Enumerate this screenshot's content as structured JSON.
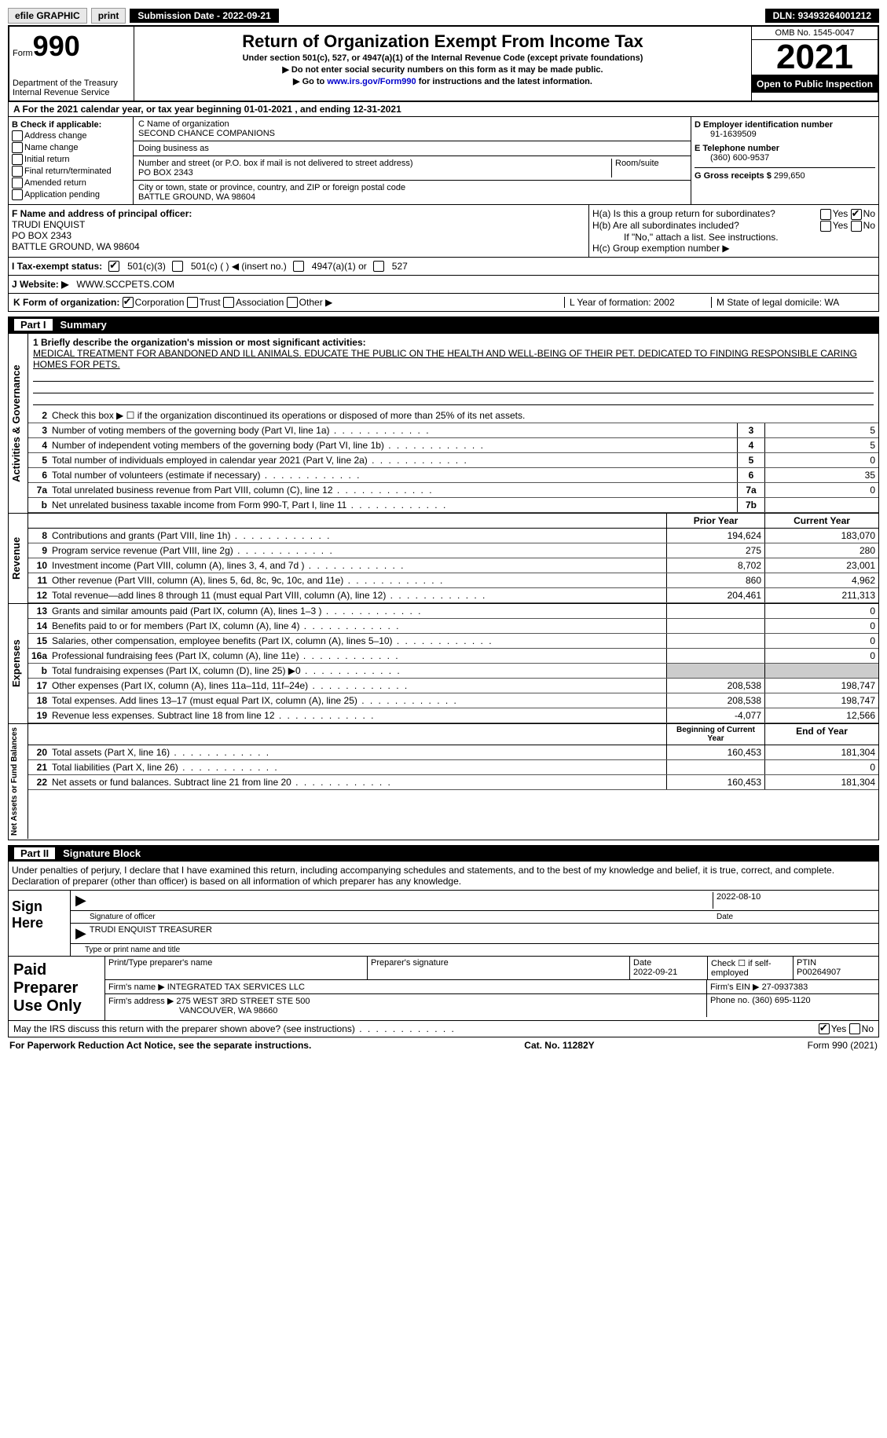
{
  "topbar": {
    "efile": "efile GRAPHIC",
    "print": "print",
    "subdate_label": "Submission Date - ",
    "subdate": "2022-09-21",
    "dln_label": "DLN: ",
    "dln": "93493264001212"
  },
  "header": {
    "form": "Form",
    "form_no": "990",
    "dept": "Department of the Treasury\nInternal Revenue Service",
    "title": "Return of Organization Exempt From Income Tax",
    "sub1": "Under section 501(c), 527, or 4947(a)(1) of the Internal Revenue Code (except private foundations)",
    "sub2": "▶ Do not enter social security numbers on this form as it may be made public.",
    "sub3a": "▶ Go to ",
    "sub3link": "www.irs.gov/Form990",
    "sub3b": " for instructions and the latest information.",
    "omb": "OMB No. 1545-0047",
    "year": "2021",
    "inspect": "Open to Public Inspection"
  },
  "rowA": "A For the 2021 calendar year, or tax year beginning 01-01-2021    , and ending 12-31-2021",
  "B": {
    "label": "B Check if applicable:",
    "opts": [
      "Address change",
      "Name change",
      "Initial return",
      "Final return/terminated",
      "Amended return",
      "Application pending"
    ]
  },
  "C": {
    "name_label": "C Name of organization",
    "name": "SECOND CHANCE COMPANIONS",
    "dba": "Doing business as",
    "addr_label": "Number and street (or P.O. box if mail is not delivered to street address)",
    "room": "Room/suite",
    "addr": "PO BOX 2343",
    "city_label": "City or town, state or province, country, and ZIP or foreign postal code",
    "city": "BATTLE GROUND, WA  98604"
  },
  "D": {
    "ein_label": "D Employer identification number",
    "ein": "91-1639509",
    "tel_label": "E Telephone number",
    "tel": "(360) 600-9537",
    "gross_label": "G Gross receipts $ ",
    "gross": "299,650"
  },
  "F": {
    "label": "F  Name and address of principal officer:",
    "name": "TRUDI ENQUIST",
    "addr": "PO BOX 2343",
    "city": "BATTLE GROUND, WA  98604"
  },
  "H": {
    "a": "H(a)  Is this a group return for subordinates?",
    "b": "H(b)  Are all subordinates included?",
    "if_no": "If \"No,\" attach a list. See instructions.",
    "c": "H(c)  Group exemption number ▶",
    "yes": "Yes",
    "no": "No"
  },
  "I": {
    "label": "I    Tax-exempt status:",
    "o1": "501(c)(3)",
    "o2": "501(c) (  ) ◀ (insert no.)",
    "o3": "4947(a)(1) or",
    "o4": "527"
  },
  "J": {
    "label": "J   Website: ▶",
    "val": "WWW.SCCPETS.COM"
  },
  "K": {
    "label": "K Form of organization:",
    "o1": "Corporation",
    "o2": "Trust",
    "o3": "Association",
    "o4": "Other ▶",
    "L": "L Year of formation: 2002",
    "M": "M State of legal domicile: WA"
  },
  "part1": {
    "n": "Part I",
    "title": "Summary"
  },
  "part2": {
    "n": "Part II",
    "title": "Signature Block"
  },
  "sides": {
    "ag": "Activities & Governance",
    "rev": "Revenue",
    "exp": "Expenses",
    "net": "Net Assets or Fund Balances"
  },
  "mission": {
    "label": "1  Briefly describe the organization's mission or most significant activities:",
    "text": "MEDICAL TREATMENT FOR ABANDONED AND ILL ANIMALS. EDUCATE THE PUBLIC ON THE HEALTH AND WELL-BEING OF THEIR PET. DEDICATED TO FINDING RESPONSIBLE CARING HOMES FOR PETS."
  },
  "line2": "Check this box ▶ ☐ if the organization discontinued its operations or disposed of more than 25% of its net assets.",
  "ag_lines": [
    {
      "n": "3",
      "d": "Number of voting members of the governing body (Part VI, line 1a)",
      "b": "3",
      "v": "5"
    },
    {
      "n": "4",
      "d": "Number of independent voting members of the governing body (Part VI, line 1b)",
      "b": "4",
      "v": "5"
    },
    {
      "n": "5",
      "d": "Total number of individuals employed in calendar year 2021 (Part V, line 2a)",
      "b": "5",
      "v": "0"
    },
    {
      "n": "6",
      "d": "Total number of volunteers (estimate if necessary)",
      "b": "6",
      "v": "35"
    },
    {
      "n": "7a",
      "d": "Total unrelated business revenue from Part VIII, column (C), line 12",
      "b": "7a",
      "v": "0"
    },
    {
      "n": "b",
      "d": "Net unrelated business taxable income from Form 990-T, Part I, line 11",
      "b": "7b",
      "v": ""
    }
  ],
  "cols": {
    "prior": "Prior Year",
    "curr": "Current Year",
    "boy": "Beginning of Current Year",
    "eoy": "End of Year"
  },
  "rev": [
    {
      "n": "8",
      "d": "Contributions and grants (Part VIII, line 1h)",
      "p": "194,624",
      "c": "183,070"
    },
    {
      "n": "9",
      "d": "Program service revenue (Part VIII, line 2g)",
      "p": "275",
      "c": "280"
    },
    {
      "n": "10",
      "d": "Investment income (Part VIII, column (A), lines 3, 4, and 7d )",
      "p": "8,702",
      "c": "23,001"
    },
    {
      "n": "11",
      "d": "Other revenue (Part VIII, column (A), lines 5, 6d, 8c, 9c, 10c, and 11e)",
      "p": "860",
      "c": "4,962"
    },
    {
      "n": "12",
      "d": "Total revenue—add lines 8 through 11 (must equal Part VIII, column (A), line 12)",
      "p": "204,461",
      "c": "211,313"
    }
  ],
  "exp": [
    {
      "n": "13",
      "d": "Grants and similar amounts paid (Part IX, column (A), lines 1–3 )",
      "p": "",
      "c": "0"
    },
    {
      "n": "14",
      "d": "Benefits paid to or for members (Part IX, column (A), line 4)",
      "p": "",
      "c": "0"
    },
    {
      "n": "15",
      "d": "Salaries, other compensation, employee benefits (Part IX, column (A), lines 5–10)",
      "p": "",
      "c": "0"
    },
    {
      "n": "16a",
      "d": "Professional fundraising fees (Part IX, column (A), line 11e)",
      "p": "",
      "c": "0"
    },
    {
      "n": "b",
      "d": "Total fundraising expenses (Part IX, column (D), line 25) ▶0",
      "p": "SHADE",
      "c": "SHADE"
    },
    {
      "n": "17",
      "d": "Other expenses (Part IX, column (A), lines 11a–11d, 11f–24e)",
      "p": "208,538",
      "c": "198,747"
    },
    {
      "n": "18",
      "d": "Total expenses. Add lines 13–17 (must equal Part IX, column (A), line 25)",
      "p": "208,538",
      "c": "198,747"
    },
    {
      "n": "19",
      "d": "Revenue less expenses. Subtract line 18 from line 12",
      "p": "-4,077",
      "c": "12,566"
    }
  ],
  "net": [
    {
      "n": "20",
      "d": "Total assets (Part X, line 16)",
      "p": "160,453",
      "c": "181,304"
    },
    {
      "n": "21",
      "d": "Total liabilities (Part X, line 26)",
      "p": "",
      "c": "0"
    },
    {
      "n": "22",
      "d": "Net assets or fund balances. Subtract line 21 from line 20",
      "p": "160,453",
      "c": "181,304"
    }
  ],
  "sig_text": "Under penalties of perjury, I declare that I have examined this return, including accompanying schedules and statements, and to the best of my knowledge and belief, it is true, correct, and complete. Declaration of preparer (other than officer) is based on all information of which preparer has any knowledge.",
  "sign": {
    "here": "Sign Here",
    "sig_of": "Signature of officer",
    "date": "2022-08-10",
    "date_l": "Date",
    "name": "TRUDI ENQUIST TREASURER",
    "name_l": "Type or print name and title"
  },
  "prep": {
    "title": "Paid Preparer Use Only",
    "pt_name": "Print/Type preparer's name",
    "pt_sig": "Preparer's signature",
    "pt_date_l": "Date",
    "pt_date": "2022-09-21",
    "check": "Check ☐ if self-employed",
    "ptin_l": "PTIN",
    "ptin": "P00264907",
    "firm_l": "Firm's name    ▶",
    "firm": "INTEGRATED TAX SERVICES LLC",
    "fein_l": "Firm's EIN ▶",
    "fein": "27-0937383",
    "faddr_l": "Firm's address ▶",
    "faddr": "275 WEST 3RD STREET STE 500",
    "faddr2": "VANCOUVER, WA  98660",
    "phone_l": "Phone no. ",
    "phone": "(360) 695-1120"
  },
  "discuss": "May the IRS discuss this return with the preparer shown above? (see instructions)",
  "footer": {
    "pra": "For Paperwork Reduction Act Notice, see the separate instructions.",
    "cat": "Cat. No. 11282Y",
    "form": "Form 990 (2021)"
  }
}
